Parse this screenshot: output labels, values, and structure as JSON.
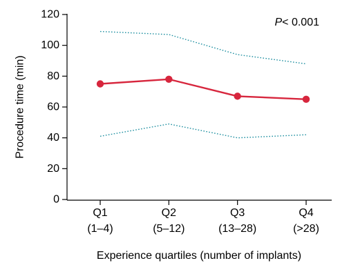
{
  "chart_data": {
    "type": "line",
    "title": "",
    "xlabel": "Experience quartiles (number of implants)",
    "ylabel": "Procedure time (min)",
    "ylim": [
      0,
      120
    ],
    "yticks": [
      0,
      20,
      40,
      60,
      80,
      100,
      120
    ],
    "grid": false,
    "categories": [
      {
        "label": "Q1",
        "sublabel": "(1–4)"
      },
      {
        "label": "Q2",
        "sublabel": "(5–12)"
      },
      {
        "label": "Q3",
        "sublabel": "(13–28)"
      },
      {
        "label": "Q4",
        "sublabel": "(>28)"
      }
    ],
    "series": [
      {
        "role": "mean",
        "style": "solid-with-markers",
        "color": "#d7263d",
        "values": [
          75,
          78,
          67,
          65
        ]
      },
      {
        "role": "upper-bound",
        "style": "dotted",
        "color": "#1e8fa0",
        "values": [
          109,
          107,
          94,
          88
        ]
      },
      {
        "role": "lower-bound",
        "style": "dotted",
        "color": "#1e8fa0",
        "values": [
          41,
          49,
          40,
          42
        ]
      }
    ],
    "annotation": {
      "p_label": "P",
      "p_value": "< 0.001"
    }
  }
}
